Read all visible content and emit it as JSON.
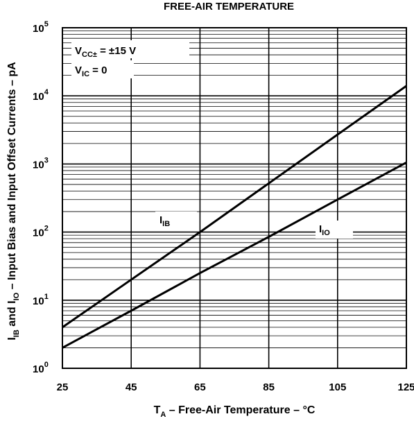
{
  "chart_data": {
    "type": "line",
    "title": "FREE-AIR TEMPERATURE",
    "xlabel": {
      "main": "T",
      "sub": "A",
      "rest": " – Free-Air Temperature – °C"
    },
    "ylabel": {
      "p1": "I",
      "p1_sub": "IB",
      "p2": " and I",
      "p2_sub": "IO",
      "p3": " – Input Bias and Input Offset Currents – pA"
    },
    "x_ticks": [
      25,
      45,
      65,
      85,
      105,
      125
    ],
    "xlim": [
      25,
      125
    ],
    "ylim": [
      1,
      100000
    ],
    "y_scale": "log",
    "y_ticks": [
      {
        "value": 1,
        "base": "10",
        "exp": "0"
      },
      {
        "value": 10,
        "base": "10",
        "exp": "1"
      },
      {
        "value": 100,
        "base": "10",
        "exp": "2"
      },
      {
        "value": 1000,
        "base": "10",
        "exp": "3"
      },
      {
        "value": 10000,
        "base": "10",
        "exp": "4"
      },
      {
        "value": 100000,
        "base": "10",
        "exp": "5"
      }
    ],
    "grid": true,
    "series": [
      {
        "name": "IB",
        "label_main": "I",
        "label_sub": "IB",
        "x": [
          25,
          45,
          65,
          85,
          105,
          125
        ],
        "values": [
          4,
          20,
          100,
          520,
          2700,
          14000
        ]
      },
      {
        "name": "IO",
        "label_main": "I",
        "label_sub": "IO",
        "x": [
          25,
          45,
          65,
          85,
          105,
          125
        ],
        "values": [
          2,
          7,
          25,
          85,
          300,
          1050
        ]
      }
    ],
    "conditions": [
      {
        "main": "V",
        "sub": "CC±",
        "rest": " = ±15 V"
      },
      {
        "main": "V",
        "sub": "IC",
        "rest": " = 0"
      }
    ]
  }
}
